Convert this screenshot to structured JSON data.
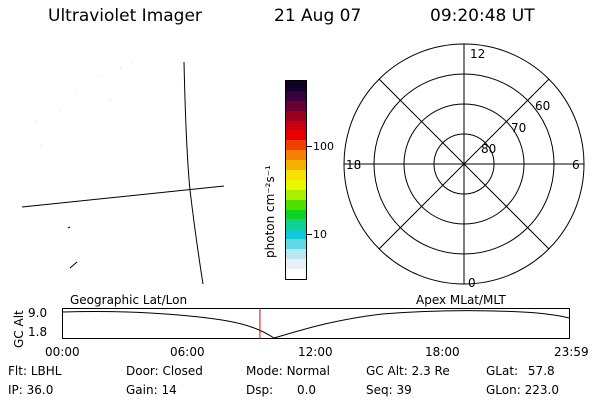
{
  "header": {
    "title": "Ultraviolet Imager",
    "date": "21 Aug 07",
    "time": "09:20:48 UT"
  },
  "colorbar": {
    "unit_label": "photon cm⁻²s⁻¹",
    "ticks": [
      "100",
      "10"
    ],
    "colors": [
      "#10002a",
      "#3a003a",
      "#6a0030",
      "#9a0020",
      "#c80010",
      "#e80000",
      "#f04000",
      "#f88000",
      "#f8b000",
      "#f8e000",
      "#e8f800",
      "#a8f000",
      "#50e000",
      "#10d020",
      "#10d090",
      "#10c8d8",
      "#60d8e8",
      "#b8e8f0",
      "#e8f0f4",
      "#ffffff"
    ]
  },
  "polar": {
    "mlt_labels": {
      "top": "12",
      "left": "18",
      "right": "6",
      "bottom": "0"
    },
    "lat_labels": [
      "60",
      "70",
      "80"
    ]
  },
  "timeline": {
    "y_label": "GC Alt",
    "y_ticks": [
      "9.0",
      "1.8"
    ],
    "left_title": "Geographic Lat/Lon",
    "right_title": "Apex MLat/MLT",
    "x_ticks": [
      "00:00",
      "06:00",
      "12:00",
      "18:00",
      "23:59"
    ],
    "current_time_fraction": 0.3894
  },
  "status": {
    "flt": {
      "label": "Flt:",
      "value": "LBHL"
    },
    "ip": {
      "label": "IP:",
      "value": "36.0"
    },
    "door": {
      "label": "Door:",
      "value": "Closed"
    },
    "gain": {
      "label": "Gain:",
      "value": "14"
    },
    "mode": {
      "label": "Mode:",
      "value": "Normal"
    },
    "dsp": {
      "label": "Dsp:",
      "value": "0.0"
    },
    "gc_alt": {
      "label": "GC Alt:",
      "value": "2.3 Re"
    },
    "seq": {
      "label": "Seq:",
      "value": "39"
    },
    "glat": {
      "label": "GLat:",
      "value": "57.8"
    },
    "glon": {
      "label": "GLon:",
      "value": "223.0"
    }
  }
}
